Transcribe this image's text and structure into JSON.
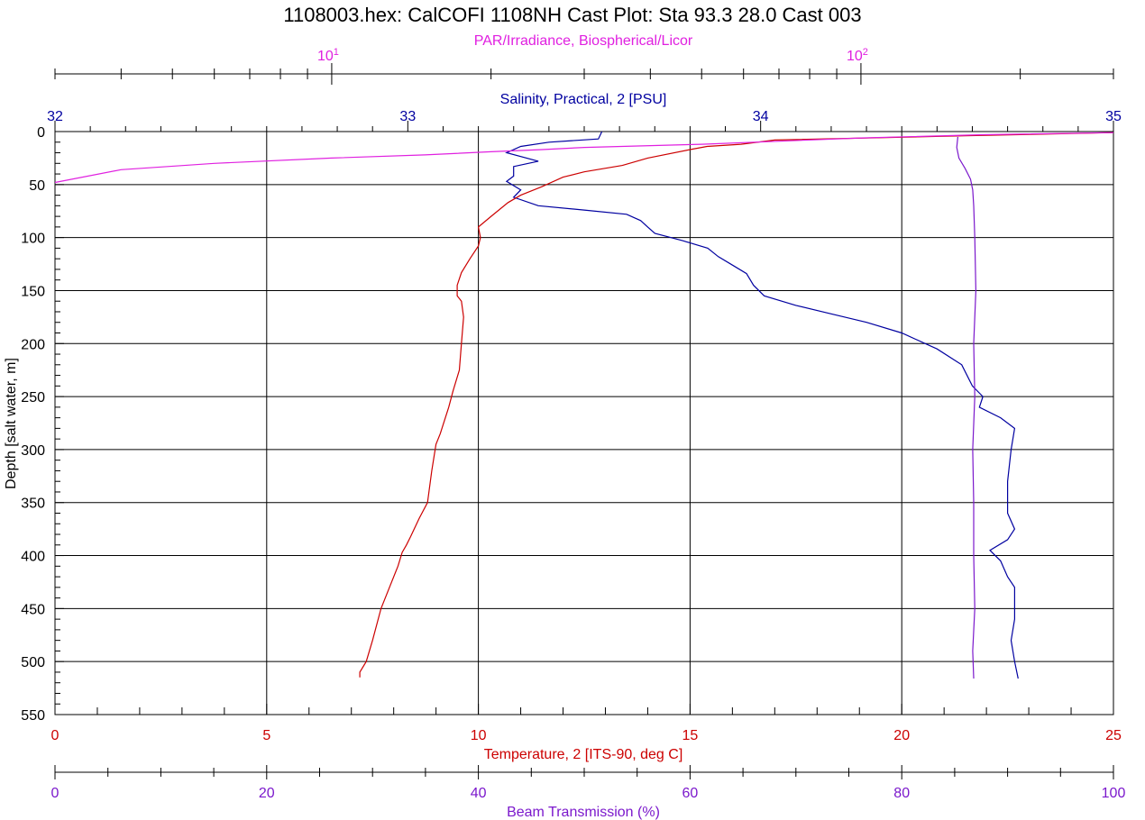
{
  "title": "1108003.hex: CalCOFI 1108NH Cast Plot: Sta 93.3 28.0 Cast 003",
  "colors": {
    "par": "#e020e0",
    "salinity": "#0000a0",
    "temperature": "#cc0000",
    "beam": "#7b18cc",
    "grid": "#000000"
  },
  "chart_data": {
    "type": "line",
    "title": "1108003.hex: CalCOFI 1108NH Cast Plot: Sta 93.3 28.0 Cast 003",
    "y_axis": {
      "label": "Depth [salt water, m]",
      "range": [
        0,
        550
      ],
      "inverted": true,
      "ticks": [
        "0",
        "50",
        "100",
        "150",
        "200",
        "250",
        "300",
        "350",
        "400",
        "450",
        "500",
        "550"
      ]
    },
    "axes": {
      "par": {
        "label": "PAR/Irradiance, Biospherical/Licor",
        "scale": "log",
        "range": [
          3,
          300
        ],
        "tick_labels": [
          {
            "base": "10",
            "exp": "1",
            "value": 10
          },
          {
            "base": "10",
            "exp": "2",
            "value": 100
          }
        ]
      },
      "salinity": {
        "label": "Salinity, Practical, 2 [PSU]",
        "range": [
          32,
          35
        ],
        "ticks": [
          "32",
          "33",
          "34",
          "35"
        ]
      },
      "temperature": {
        "label": "Temperature, 2 [ITS-90, deg C]",
        "range": [
          0,
          25
        ],
        "ticks": [
          "0",
          "5",
          "10",
          "15",
          "20",
          "25"
        ]
      },
      "beam": {
        "label": "Beam Transmission (%)",
        "range": [
          0,
          100
        ],
        "ticks": [
          "0",
          "20",
          "40",
          "60",
          "80",
          "100"
        ]
      }
    },
    "grid": true,
    "series": [
      {
        "name": "Salinity, Practical, 2 [PSU]",
        "axis": "salinity",
        "points": [
          [
            33.55,
            0
          ],
          [
            33.54,
            7
          ],
          [
            33.4,
            10
          ],
          [
            33.32,
            14
          ],
          [
            33.28,
            20
          ],
          [
            33.37,
            28
          ],
          [
            33.3,
            33
          ],
          [
            33.3,
            42
          ],
          [
            33.28,
            47
          ],
          [
            33.32,
            55
          ],
          [
            33.3,
            62
          ],
          [
            33.37,
            70
          ],
          [
            33.5,
            74
          ],
          [
            33.62,
            78
          ],
          [
            33.66,
            84
          ],
          [
            33.68,
            90
          ],
          [
            33.7,
            96
          ],
          [
            33.78,
            103
          ],
          [
            33.85,
            110
          ],
          [
            33.88,
            118
          ],
          [
            33.92,
            126
          ],
          [
            33.96,
            134
          ],
          [
            33.98,
            145
          ],
          [
            34.01,
            155
          ],
          [
            34.1,
            164
          ],
          [
            34.2,
            172
          ],
          [
            34.3,
            180
          ],
          [
            34.4,
            190
          ],
          [
            34.5,
            205
          ],
          [
            34.57,
            220
          ],
          [
            34.6,
            240
          ],
          [
            34.63,
            250
          ],
          [
            34.62,
            260
          ],
          [
            34.68,
            270
          ],
          [
            34.72,
            280
          ],
          [
            34.71,
            300
          ],
          [
            34.7,
            330
          ],
          [
            34.7,
            360
          ],
          [
            34.72,
            375
          ],
          [
            34.7,
            385
          ],
          [
            34.65,
            395
          ],
          [
            34.68,
            405
          ],
          [
            34.7,
            420
          ],
          [
            34.72,
            430
          ],
          [
            34.72,
            460
          ],
          [
            34.71,
            480
          ],
          [
            34.72,
            500
          ],
          [
            34.73,
            516
          ]
        ]
      },
      {
        "name": "Temperature, 2 [ITS-90, deg C]",
        "axis": "temperature",
        "points": [
          [
            25.0,
            1
          ],
          [
            21.5,
            4
          ],
          [
            17.0,
            8
          ],
          [
            16.2,
            12
          ],
          [
            15.4,
            14
          ],
          [
            15.0,
            17
          ],
          [
            14.0,
            25
          ],
          [
            13.4,
            32
          ],
          [
            12.5,
            38
          ],
          [
            12.0,
            43
          ],
          [
            11.5,
            52
          ],
          [
            11.0,
            60
          ],
          [
            10.7,
            67
          ],
          [
            10.3,
            80
          ],
          [
            10.0,
            90
          ],
          [
            10.05,
            100
          ],
          [
            10.0,
            108
          ],
          [
            9.8,
            120
          ],
          [
            9.6,
            133
          ],
          [
            9.5,
            145
          ],
          [
            9.5,
            155
          ],
          [
            9.6,
            160
          ],
          [
            9.65,
            175
          ],
          [
            9.6,
            200
          ],
          [
            9.55,
            225
          ],
          [
            9.4,
            245
          ],
          [
            9.3,
            260
          ],
          [
            9.1,
            285
          ],
          [
            9.0,
            295
          ],
          [
            8.9,
            320
          ],
          [
            8.8,
            350
          ],
          [
            8.6,
            365
          ],
          [
            8.4,
            382
          ],
          [
            8.3,
            390
          ],
          [
            8.2,
            397
          ],
          [
            8.1,
            410
          ],
          [
            7.9,
            430
          ],
          [
            7.7,
            450
          ],
          [
            7.5,
            480
          ],
          [
            7.35,
            500
          ],
          [
            7.2,
            510
          ],
          [
            7.2,
            515
          ]
        ]
      },
      {
        "name": "PAR/Irradiance, Biospherical/Licor",
        "axis": "par",
        "points": [
          [
            300,
            1
          ],
          [
            170,
            3
          ],
          [
            100,
            6
          ],
          [
            50,
            12
          ],
          [
            30,
            15
          ],
          [
            25,
            17
          ],
          [
            20,
            19
          ],
          [
            15,
            22
          ],
          [
            10,
            25
          ],
          [
            6,
            30
          ],
          [
            4,
            36
          ],
          [
            3,
            48
          ]
        ]
      },
      {
        "name": "Beam Transmission (%)",
        "axis": "beam",
        "points": [
          [
            85.3,
            5
          ],
          [
            85.2,
            15
          ],
          [
            85.4,
            25
          ],
          [
            86.0,
            35
          ],
          [
            86.5,
            45
          ],
          [
            86.7,
            55
          ],
          [
            86.8,
            70
          ],
          [
            86.9,
            100
          ],
          [
            87.0,
            150
          ],
          [
            86.8,
            200
          ],
          [
            86.9,
            250
          ],
          [
            86.7,
            300
          ],
          [
            86.8,
            350
          ],
          [
            86.8,
            400
          ],
          [
            86.9,
            450
          ],
          [
            86.7,
            490
          ],
          [
            86.8,
            516
          ]
        ]
      }
    ]
  }
}
